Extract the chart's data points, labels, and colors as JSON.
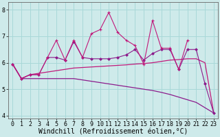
{
  "x": [
    0,
    1,
    2,
    3,
    4,
    5,
    6,
    7,
    8,
    9,
    10,
    11,
    12,
    13,
    14,
    15,
    16,
    17,
    18,
    19,
    20,
    21,
    22,
    23
  ],
  "series_jagged1": [
    5.95,
    5.4,
    5.55,
    5.55,
    6.2,
    6.85,
    6.1,
    6.85,
    6.2,
    7.1,
    7.25,
    7.9,
    7.15,
    6.85,
    6.65,
    5.95,
    7.6,
    6.55,
    6.55,
    5.75,
    6.85,
    null,
    null,
    null
  ],
  "series_jagged2": [
    null,
    null,
    null,
    null,
    null,
    6.2,
    6.1,
    7.2,
    6.2,
    null,
    null,
    null,
    null,
    null,
    null,
    null,
    null,
    6.55,
    6.55,
    null,
    null,
    null,
    null,
    null
  ],
  "series_flat": [
    5.95,
    5.4,
    5.55,
    5.6,
    5.65,
    5.7,
    5.75,
    5.8,
    5.82,
    5.84,
    5.86,
    5.88,
    5.9,
    5.92,
    5.95,
    5.97,
    6.0,
    6.05,
    6.1,
    6.12,
    6.15,
    6.15,
    6.0,
    4.1
  ],
  "series_diagonal": [
    5.95,
    5.4,
    5.4,
    5.4,
    5.4,
    5.4,
    5.4,
    5.4,
    5.35,
    5.3,
    5.25,
    5.2,
    5.15,
    5.1,
    5.05,
    5.0,
    4.95,
    4.88,
    4.8,
    4.7,
    4.6,
    4.5,
    4.3,
    4.1
  ],
  "series_med": [
    5.95,
    5.4,
    5.55,
    5.55,
    6.2,
    6.2,
    6.1,
    6.8,
    6.2,
    6.15,
    6.15,
    6.15,
    6.2,
    6.3,
    6.5,
    6.1,
    6.35,
    6.5,
    6.5,
    5.75,
    6.5,
    6.5,
    5.2,
    4.1
  ],
  "color_purple": "#8B1A8B",
  "color_magenta": "#C0187A",
  "background": "#ceeaea",
  "grid_color": "#a8d8d8",
  "ylim": [
    3.9,
    8.3
  ],
  "xlim": [
    -0.5,
    23.5
  ],
  "yticks": [
    4,
    5,
    6,
    7,
    8
  ],
  "xlabel": "Windchill (Refroidissement éolien,°C)",
  "xlabel_fontsize": 7,
  "tick_fontsize": 6,
  "figsize": [
    3.2,
    2.0
  ],
  "dpi": 100
}
